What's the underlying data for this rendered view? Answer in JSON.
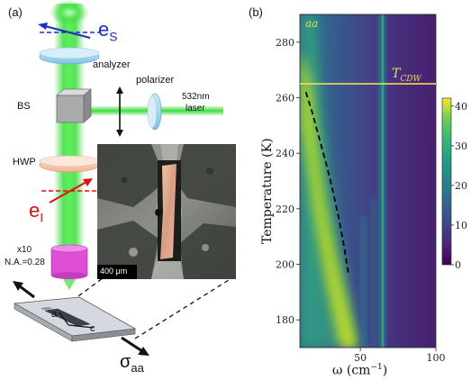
{
  "panel_a": {
    "label": "(a)",
    "es_label": "e",
    "es_sub": "S",
    "analyzer_label": "analyzer",
    "polarizer_label": "polarizer",
    "laser_label_1": "532nm",
    "laser_label_2": "laser",
    "bs_label": "BS",
    "hwp_label": "HWP",
    "ei_label": "e",
    "ei_sub": "I",
    "objective_label_1": "x10",
    "objective_label_2": "N.A.=0.28",
    "scale_bar_label": "400 μm",
    "axis_a_label": "a",
    "axis_c_label": "c",
    "sigma_label": "σ",
    "sigma_sub": "aa",
    "colors": {
      "laser": "#3ddc3d",
      "es_arrow": "#1f2fbf",
      "ei_arrow": "#e01010"
    }
  },
  "panel_b": {
    "label": "(b)",
    "channel_label": "aa",
    "tcdw_label": "T",
    "tcdw_sub": "CDW",
    "ylabel": "Temperature (K)",
    "xlabel_main": "ω (cm",
    "xlabel_sup": "−1",
    "xlabel_end": ")",
    "colormap": "viridis",
    "tcdw_line_color": "#f3d95a"
  },
  "chart_data": {
    "type": "heatmap",
    "title": "",
    "xlabel": "ω (cm−1)",
    "ylabel": "Temperature (K)",
    "xlim": [
      10,
      100
    ],
    "ylim": [
      170,
      290
    ],
    "x_ticks": [
      50,
      100
    ],
    "y_ticks": [
      180,
      200,
      220,
      240,
      260,
      280
    ],
    "colorbar": {
      "range": [
        0,
        42
      ],
      "ticks": [
        0,
        10,
        20,
        30,
        40
      ]
    },
    "tcdw_temperature": 265,
    "soft_mode_fit": [
      {
        "x": 14,
        "y": 262
      },
      {
        "x": 18,
        "y": 255
      },
      {
        "x": 23,
        "y": 245
      },
      {
        "x": 28,
        "y": 235
      },
      {
        "x": 32,
        "y": 226
      },
      {
        "x": 36,
        "y": 216
      },
      {
        "x": 39,
        "y": 207
      },
      {
        "x": 42,
        "y": 197
      }
    ],
    "grid": false
  }
}
